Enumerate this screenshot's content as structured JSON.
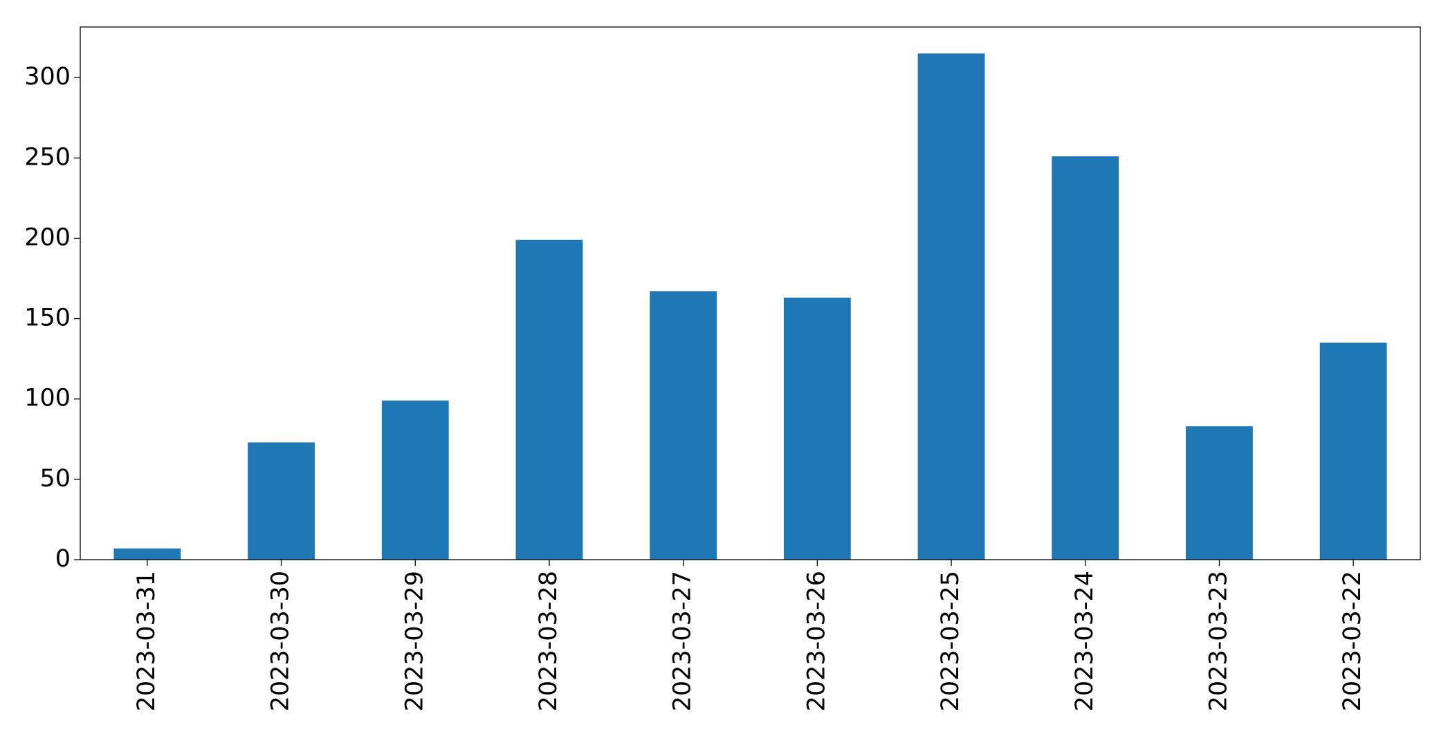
{
  "chart_data": {
    "type": "bar",
    "categories": [
      "2023-03-31",
      "2023-03-30",
      "2023-03-29",
      "2023-03-28",
      "2023-03-27",
      "2023-03-26",
      "2023-03-25",
      "2023-03-24",
      "2023-03-23",
      "2023-03-22"
    ],
    "values": [
      7,
      73,
      99,
      199,
      167,
      163,
      315,
      251,
      83,
      135
    ],
    "color": "#1f77b4",
    "ylim": [
      0,
      331.5
    ],
    "yticks": [
      0,
      50,
      100,
      150,
      200,
      250,
      300
    ],
    "grid": false
  }
}
